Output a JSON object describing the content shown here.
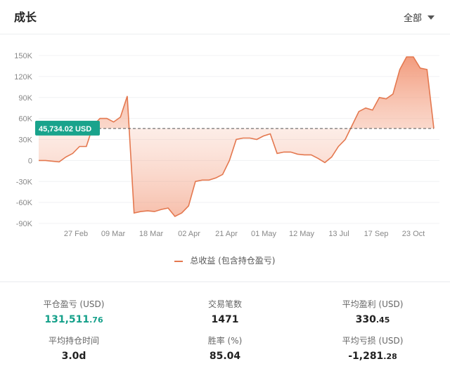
{
  "header": {
    "title": "成长",
    "filter_label": "全部"
  },
  "chart_data": {
    "type": "area",
    "y_ticks": [
      "150K",
      "120K",
      "90K",
      "60K",
      "30K",
      "0",
      "-30K",
      "-60K",
      "-90K"
    ],
    "y_tick_values": [
      150000,
      120000,
      90000,
      60000,
      30000,
      0,
      -30000,
      -60000,
      -90000
    ],
    "x_ticks": [
      "27 Feb",
      "09 Mar",
      "18 Mar",
      "02 Apr",
      "21 Apr",
      "01 May",
      "12 May",
      "13 Jul",
      "17 Sep",
      "23 Oct"
    ],
    "ylim": [
      -90000,
      150000
    ],
    "reference_line": {
      "value": 45734.02,
      "label": "45,734.02 USD"
    },
    "series": [
      {
        "name": "总收益 (包含持仓盈亏)",
        "values": [
          0,
          0,
          -1000,
          -2000,
          5000,
          10000,
          20000,
          20000,
          50000,
          60000,
          60000,
          55000,
          62000,
          92000,
          -75000,
          -73000,
          -72000,
          -73000,
          -70000,
          -68000,
          -80000,
          -75000,
          -65000,
          -30000,
          -28000,
          -28000,
          -25000,
          -20000,
          0,
          30000,
          32000,
          32000,
          30000,
          35000,
          38000,
          10000,
          12000,
          12000,
          9000,
          8000,
          8000,
          3000,
          -3000,
          5000,
          20000,
          30000,
          50000,
          70000,
          75000,
          72000,
          90000,
          88000,
          95000,
          130000,
          148000,
          148000,
          132000,
          130000,
          45734
        ]
      }
    ],
    "colors": {
      "line": "#e4784f",
      "fill": "#f6b9a3",
      "reference_badge": "#19a38c"
    }
  },
  "stats": [
    {
      "label": "平仓盈亏 (USD)",
      "value_int": "131,511",
      "value_frac": ".76"
    },
    {
      "label": "交易笔数",
      "value_int": "1471",
      "value_frac": ""
    },
    {
      "label": "平均盈利 (USD)",
      "value_int": "330",
      "value_frac": ".45"
    },
    {
      "label": "平均持仓时间",
      "value_int": "3.0d",
      "value_frac": ""
    },
    {
      "label": "胜率 (%)",
      "value_int": "85.04",
      "value_frac": ""
    },
    {
      "label": "平均亏损 (USD)",
      "value_int": "-1,281",
      "value_frac": ".28"
    }
  ]
}
